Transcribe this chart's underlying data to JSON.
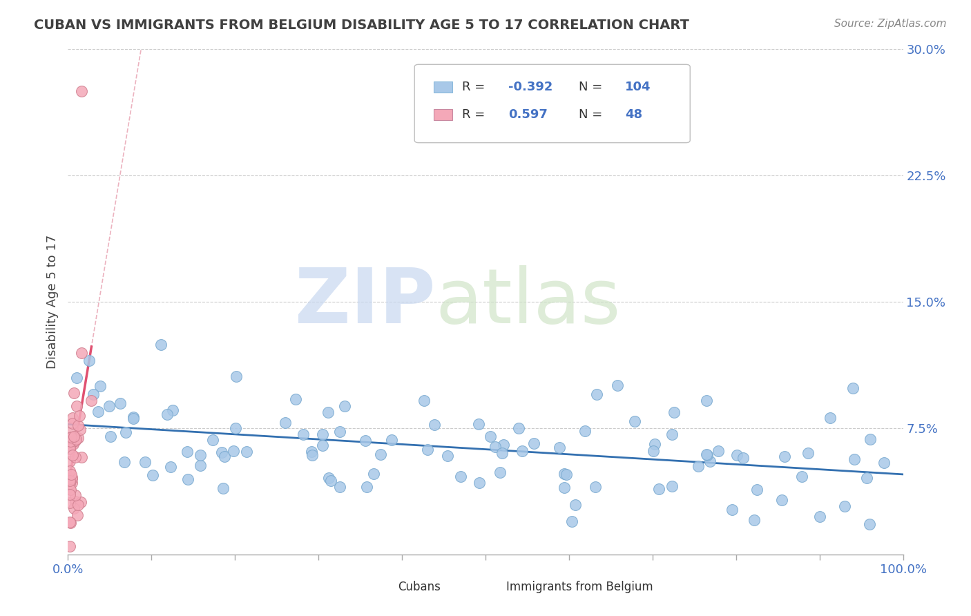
{
  "title": "CUBAN VS IMMIGRANTS FROM BELGIUM DISABILITY AGE 5 TO 17 CORRELATION CHART",
  "source": "Source: ZipAtlas.com",
  "ylabel": "Disability Age 5 to 17",
  "xmin": 0.0,
  "xmax": 1.0,
  "ymin": 0.0,
  "ymax": 0.3,
  "cubans_R": -0.392,
  "cubans_N": 104,
  "belgium_R": 0.597,
  "belgium_N": 48,
  "blue_color": "#a8c8e8",
  "pink_color": "#f4a8b8",
  "blue_line_color": "#3370b0",
  "pink_line_color": "#e05070",
  "pink_dash_color": "#e8a0b0",
  "watermark_zip": "ZIP",
  "watermark_atlas": "atlas",
  "title_color": "#404040",
  "source_color": "#888888",
  "tick_color": "#4472c4",
  "axis_color": "#cccccc",
  "legend_r_color": "#333333",
  "legend_val_color": "#4472c4"
}
